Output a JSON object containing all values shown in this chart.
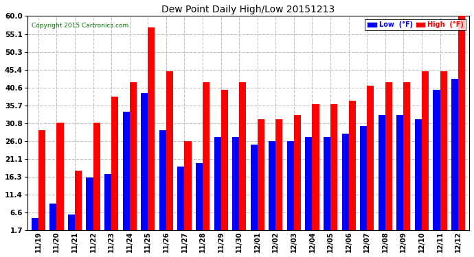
{
  "title": "Dew Point Daily High/Low 20151213",
  "copyright": "Copyright 2015 Cartronics.com",
  "dates": [
    "11/19",
    "11/20",
    "11/21",
    "11/22",
    "11/23",
    "11/24",
    "11/25",
    "11/26",
    "11/27",
    "11/28",
    "11/29",
    "11/30",
    "12/01",
    "12/02",
    "12/03",
    "12/04",
    "12/05",
    "12/06",
    "12/07",
    "12/08",
    "12/09",
    "12/10",
    "12/11",
    "12/12"
  ],
  "low_values": [
    5,
    9,
    6,
    16,
    17,
    34,
    39,
    29,
    19,
    20,
    27,
    27,
    25,
    26,
    26,
    27,
    27,
    28,
    30,
    33,
    33,
    32,
    40,
    43
  ],
  "high_values": [
    29,
    31,
    18,
    31,
    38,
    42,
    57,
    45,
    26,
    42,
    40,
    42,
    32,
    32,
    33,
    36,
    36,
    37,
    41,
    42,
    42,
    45,
    45,
    60
  ],
  "low_color": "#0000ff",
  "high_color": "#ff0000",
  "ylim_min": 1.7,
  "ylim_max": 60.0,
  "yticks": [
    1.7,
    6.6,
    11.4,
    16.3,
    21.1,
    26.0,
    30.8,
    35.7,
    40.6,
    45.4,
    50.3,
    55.1,
    60.0
  ],
  "background_color": "#ffffff",
  "grid_color": "#c0c0c0",
  "bar_width": 0.38,
  "legend_labels": [
    "Low  (°F)",
    "High  (°F)"
  ],
  "legend_low_bg": "#0000ff",
  "legend_high_bg": "#ff0000",
  "figwidth": 6.9,
  "figheight": 3.75,
  "dpi": 100
}
